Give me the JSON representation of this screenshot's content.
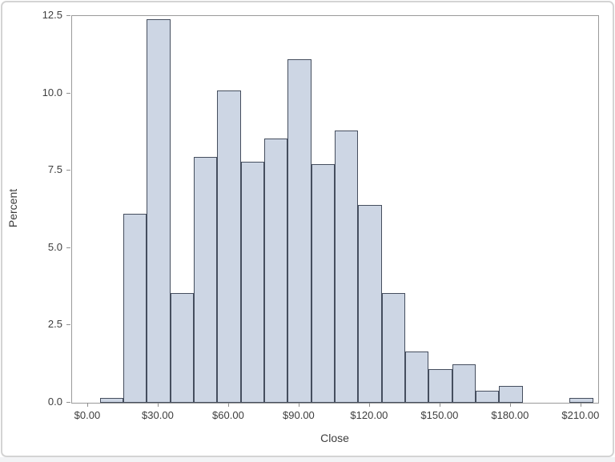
{
  "window": {
    "background": "#ffffff",
    "border_color": "#d4d4d4",
    "bottom_strip_color": "#f2f3f5"
  },
  "chart_data": {
    "type": "bar",
    "subtype": "histogram",
    "title": "",
    "xlabel": "Close",
    "ylabel": "Percent",
    "bin_width": 10,
    "bin_midpoints": [
      10,
      20,
      30,
      40,
      50,
      60,
      70,
      80,
      90,
      100,
      110,
      120,
      130,
      140,
      150,
      160,
      170,
      180,
      190,
      200,
      210
    ],
    "values_percent": [
      0.15,
      6.1,
      12.4,
      3.55,
      7.95,
      10.1,
      7.8,
      8.55,
      11.1,
      7.7,
      8.8,
      6.4,
      3.55,
      1.65,
      1.1,
      1.25,
      0.4,
      0.55,
      0,
      0,
      0.15
    ],
    "x_tick_values": [
      0,
      30,
      60,
      90,
      120,
      150,
      180,
      210
    ],
    "x_tick_labels": [
      "$0.00",
      "$30.00",
      "$60.00",
      "$90.00",
      "$120.00",
      "$150.00",
      "$180.00",
      "$210.00"
    ],
    "y_tick_values": [
      0,
      2.5,
      5,
      7.5,
      10,
      12.5
    ],
    "y_tick_labels": [
      "0.0",
      "2.5",
      "5.0",
      "7.5",
      "10.0",
      "12.5"
    ],
    "xlim": [
      -6.8,
      217.2
    ],
    "ylim": [
      0,
      12.5
    ],
    "grid": false,
    "legend": "none",
    "bar_fill": "#cdd6e4",
    "bar_border": "#454e5e",
    "frame_color": "#9a9a9a",
    "tick_color": "#8f8f8f",
    "label_color": "#3d3d3d"
  }
}
